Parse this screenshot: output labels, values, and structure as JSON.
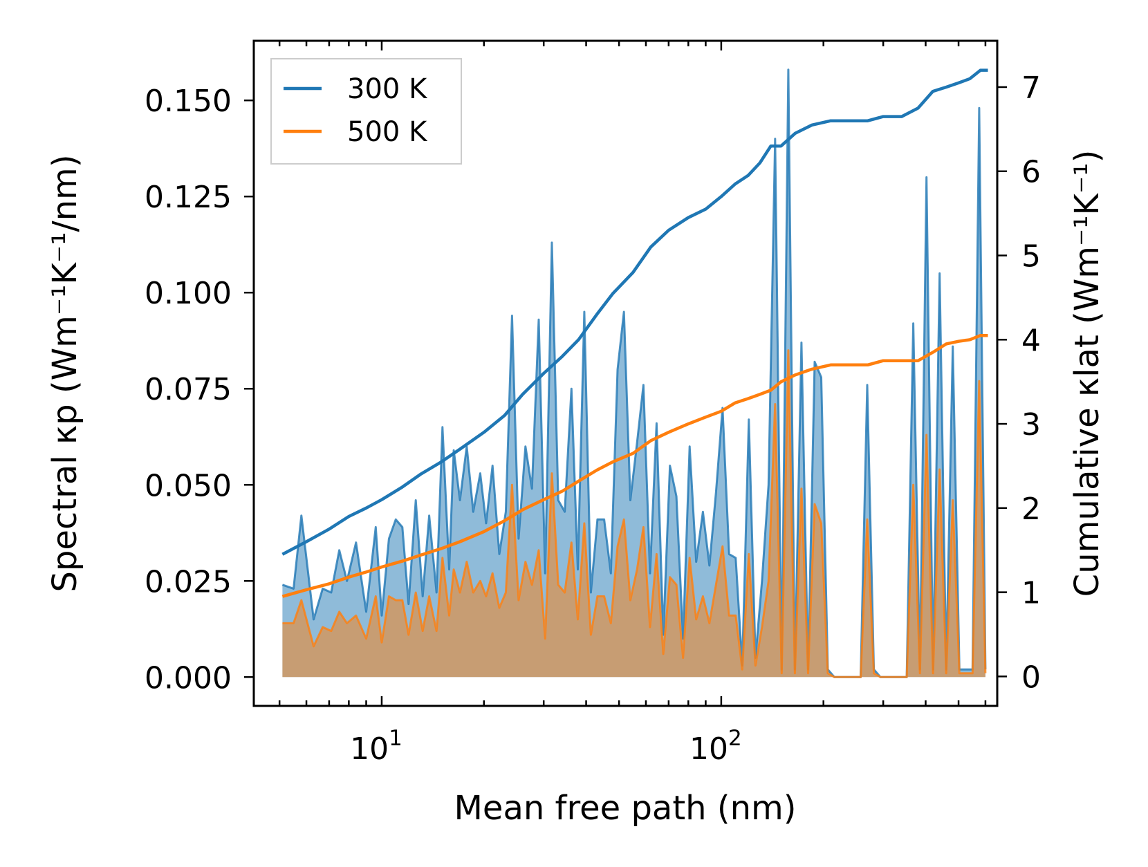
{
  "chart_data": {
    "type": "line",
    "x_scale": "log",
    "xlabel": "Mean free path (nm)",
    "ylabel_left": "Spectral κp (Wm⁻¹K⁻¹/nm)",
    "ylabel_right": "Cumulative κlat (Wm⁻¹K⁻¹)",
    "xlim": [
      4.2,
      650
    ],
    "ylim_left": [
      -0.0075,
      0.1655
    ],
    "ylim_right": [
      -0.35,
      7.55
    ],
    "x_ticks": [
      {
        "value": 10,
        "base": "10",
        "exp": "1"
      },
      {
        "value": 100,
        "base": "10",
        "exp": "2"
      }
    ],
    "y_ticks_left": [
      {
        "value": 0.0,
        "label": "0.000"
      },
      {
        "value": 0.025,
        "label": "0.025"
      },
      {
        "value": 0.05,
        "label": "0.050"
      },
      {
        "value": 0.075,
        "label": "0.075"
      },
      {
        "value": 0.1,
        "label": "0.100"
      },
      {
        "value": 0.125,
        "label": "0.125"
      },
      {
        "value": 0.15,
        "label": "0.150"
      }
    ],
    "y_ticks_right": [
      {
        "value": 0,
        "label": "0"
      },
      {
        "value": 1,
        "label": "1"
      },
      {
        "value": 2,
        "label": "2"
      },
      {
        "value": 3,
        "label": "3"
      },
      {
        "value": 4,
        "label": "4"
      },
      {
        "value": 5,
        "label": "5"
      },
      {
        "value": 6,
        "label": "6"
      },
      {
        "value": 7,
        "label": "7"
      }
    ],
    "legend": {
      "position": "top-left",
      "entries": [
        {
          "label": "300 K",
          "color": "#1f77b4"
        },
        {
          "label": "500 K",
          "color": "#ff7f0e"
        }
      ]
    },
    "series": [
      {
        "name": "300 K",
        "color": "#1f77b4",
        "spectral": {
          "x": [
            5.1,
            5.5,
            5.8,
            6.3,
            6.7,
            7.1,
            7.5,
            7.9,
            8.4,
            9.0,
            9.6,
            10.0,
            10.5,
            11.0,
            11.5,
            12.0,
            12.6,
            13.2,
            13.8,
            14.5,
            15.1,
            15.8,
            16.3,
            17.0,
            17.8,
            18.6,
            19.5,
            20.3,
            21.2,
            22.2,
            23.2,
            24.2,
            25.3,
            26.5,
            27.7,
            29.0,
            30.3,
            31.7,
            33.1,
            34.6,
            36.2,
            37.8,
            39.5,
            41.3,
            43.2,
            45.2,
            47.3,
            49.5,
            51.7,
            54.0,
            56.5,
            59.0,
            61.7,
            64.5,
            67.5,
            70.6,
            73.8,
            77.2,
            80.7,
            84.4,
            88.3,
            92.3,
            96.5,
            100.9,
            105.5,
            110.3,
            115.3,
            120.6,
            126.1,
            131.8,
            137.8,
            144.1,
            150.7,
            157.6,
            164.8,
            172.3,
            180.2,
            188.4,
            197.0,
            206.0,
            215.4,
            225.2,
            235.5,
            246.2,
            257.4,
            269.2,
            281.5,
            294.3,
            307.7,
            321.8,
            336.5,
            351.8,
            367.9,
            384.7,
            402.2,
            420.6,
            439.8,
            459.8,
            480.8,
            502.8,
            525.7,
            549.7,
            575.0,
            600.0
          ],
          "y": [
            0.024,
            0.023,
            0.042,
            0.015,
            0.023,
            0.022,
            0.033,
            0.025,
            0.035,
            0.017,
            0.039,
            0.016,
            0.036,
            0.041,
            0.039,
            0.019,
            0.046,
            0.021,
            0.042,
            0.022,
            0.065,
            0.028,
            0.059,
            0.046,
            0.06,
            0.043,
            0.053,
            0.04,
            0.055,
            0.032,
            0.043,
            0.094,
            0.036,
            0.06,
            0.049,
            0.093,
            0.027,
            0.113,
            0.046,
            0.043,
            0.075,
            0.028,
            0.095,
            0.022,
            0.041,
            0.041,
            0.027,
            0.08,
            0.095,
            0.046,
            0.061,
            0.076,
            0.027,
            0.066,
            0.011,
            0.055,
            0.047,
            0.01,
            0.06,
            0.03,
            0.043,
            0.029,
            0.048,
            0.07,
            0.032,
            0.031,
            0.003,
            0.067,
            0.005,
            0.025,
            0.05,
            0.14,
            0.002,
            0.158,
            0.002,
            0.087,
            0.002,
            0.082,
            0.078,
            0.002,
            0.0,
            0.0,
            0.0,
            0.0,
            0.0,
            0.076,
            0.002,
            0.0,
            0.0,
            0.0,
            0.0,
            0.0,
            0.092,
            0.002,
            0.13,
            0.002,
            0.105,
            0.002,
            0.086,
            0.002,
            0.002,
            0.002,
            0.148,
            0.002
          ]
        },
        "cumulative": {
          "x": [
            5.1,
            6.0,
            7.0,
            8.0,
            9.0,
            10.0,
            11.5,
            13.0,
            15.0,
            17.0,
            20.0,
            23.0,
            26.0,
            30.0,
            34.0,
            38.0,
            43.0,
            48.0,
            55.0,
            62.0,
            70.0,
            80.0,
            90.0,
            100.0,
            110.0,
            120.0,
            130.0,
            140.0,
            150.0,
            165.0,
            185.0,
            210.0,
            240.0,
            270.0,
            300.0,
            340.0,
            380.0,
            420.0,
            460.0,
            500.0,
            540.0,
            580.0,
            610.0
          ],
          "y": [
            1.45,
            1.6,
            1.75,
            1.9,
            2.0,
            2.1,
            2.25,
            2.4,
            2.55,
            2.7,
            2.9,
            3.1,
            3.35,
            3.6,
            3.8,
            4.0,
            4.3,
            4.55,
            4.8,
            5.1,
            5.3,
            5.45,
            5.55,
            5.7,
            5.85,
            5.95,
            6.1,
            6.3,
            6.3,
            6.45,
            6.55,
            6.6,
            6.6,
            6.6,
            6.65,
            6.65,
            6.75,
            6.95,
            7.0,
            7.05,
            7.1,
            7.2,
            7.2
          ]
        }
      },
      {
        "name": "500 K",
        "color": "#ff7f0e",
        "spectral": {
          "x": [
            5.1,
            5.5,
            5.8,
            6.3,
            6.7,
            7.1,
            7.5,
            7.9,
            8.4,
            9.0,
            9.6,
            10.0,
            10.5,
            11.0,
            11.5,
            12.0,
            12.6,
            13.2,
            13.8,
            14.5,
            15.1,
            15.8,
            16.3,
            17.0,
            17.8,
            18.6,
            19.5,
            20.3,
            21.2,
            22.2,
            23.2,
            24.2,
            25.3,
            26.5,
            27.7,
            29.0,
            30.3,
            31.7,
            33.1,
            34.6,
            36.2,
            37.8,
            39.5,
            41.3,
            43.2,
            45.2,
            47.3,
            49.5,
            51.7,
            54.0,
            56.5,
            59.0,
            61.7,
            64.5,
            67.5,
            70.6,
            73.8,
            77.2,
            80.7,
            84.4,
            88.3,
            92.3,
            96.5,
            100.9,
            105.5,
            110.3,
            115.3,
            120.6,
            126.1,
            131.8,
            137.8,
            144.1,
            150.7,
            157.6,
            164.8,
            172.3,
            180.2,
            188.4,
            197.0,
            206.0,
            215.4,
            225.2,
            235.5,
            246.2,
            257.4,
            269.2,
            281.5,
            294.3,
            307.7,
            321.8,
            336.5,
            351.8,
            367.9,
            384.7,
            402.2,
            420.6,
            439.8,
            459.8,
            480.8,
            502.8,
            525.7,
            549.7,
            575.0,
            600.0
          ],
          "y": [
            0.014,
            0.014,
            0.02,
            0.008,
            0.013,
            0.012,
            0.017,
            0.014,
            0.016,
            0.01,
            0.021,
            0.009,
            0.021,
            0.02,
            0.02,
            0.011,
            0.022,
            0.012,
            0.021,
            0.012,
            0.031,
            0.016,
            0.028,
            0.022,
            0.03,
            0.022,
            0.025,
            0.021,
            0.027,
            0.018,
            0.022,
            0.05,
            0.02,
            0.03,
            0.024,
            0.033,
            0.01,
            0.053,
            0.024,
            0.022,
            0.035,
            0.015,
            0.04,
            0.011,
            0.021,
            0.021,
            0.014,
            0.034,
            0.041,
            0.02,
            0.028,
            0.039,
            0.013,
            0.032,
            0.006,
            0.026,
            0.024,
            0.005,
            0.031,
            0.015,
            0.021,
            0.014,
            0.024,
            0.034,
            0.016,
            0.016,
            0.002,
            0.032,
            0.003,
            0.013,
            0.025,
            0.071,
            0.001,
            0.085,
            0.001,
            0.049,
            0.001,
            0.045,
            0.04,
            0.001,
            0.0,
            0.0,
            0.0,
            0.0,
            0.0,
            0.041,
            0.001,
            0.0,
            0.0,
            0.0,
            0.0,
            0.0,
            0.05,
            0.001,
            0.063,
            0.001,
            0.054,
            0.001,
            0.046,
            0.001,
            0.001,
            0.001,
            0.077,
            0.001
          ]
        },
        "cumulative": {
          "x": [
            5.1,
            6.0,
            7.0,
            8.0,
            9.0,
            10.0,
            11.5,
            13.0,
            15.0,
            17.0,
            20.0,
            23.0,
            26.0,
            30.0,
            34.0,
            38.0,
            43.0,
            48.0,
            55.0,
            62.0,
            70.0,
            80.0,
            90.0,
            100.0,
            110.0,
            120.0,
            130.0,
            140.0,
            150.0,
            165.0,
            185.0,
            210.0,
            240.0,
            270.0,
            300.0,
            340.0,
            380.0,
            420.0,
            460.0,
            500.0,
            540.0,
            580.0,
            610.0
          ],
          "y": [
            0.95,
            1.03,
            1.1,
            1.18,
            1.24,
            1.3,
            1.37,
            1.44,
            1.52,
            1.6,
            1.72,
            1.85,
            1.98,
            2.1,
            2.2,
            2.32,
            2.45,
            2.55,
            2.65,
            2.8,
            2.9,
            3.0,
            3.08,
            3.15,
            3.25,
            3.3,
            3.35,
            3.4,
            3.5,
            3.58,
            3.65,
            3.7,
            3.7,
            3.7,
            3.75,
            3.75,
            3.75,
            3.85,
            3.95,
            3.98,
            4.0,
            4.05,
            4.05
          ]
        }
      }
    ]
  }
}
